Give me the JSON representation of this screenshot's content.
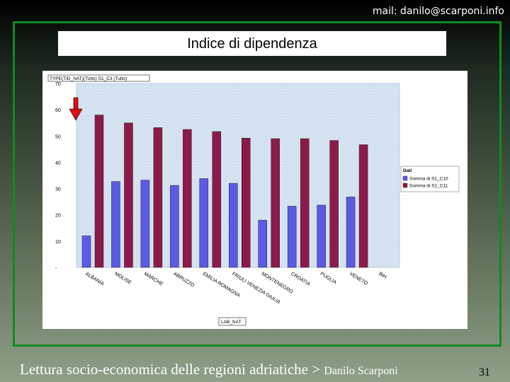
{
  "header": {
    "email": "mail: danilo@scarponi.info"
  },
  "slide": {
    "title": "Indice di dipendenza"
  },
  "footer": {
    "text": "Lettura socio-economica delle regioni adriatiche > ",
    "author": "Danilo Scarponi",
    "page_number": "31"
  },
  "colors": {
    "series1": "#5b5be6",
    "series2": "#8c1a4a",
    "plot_bg": "#d6e4f2",
    "arrow": "#e01010"
  },
  "chart_data": {
    "type": "bar",
    "filter_label": "TYPE(TID_NAT)(Tutto) S1_C3 (Tutto)",
    "categories": [
      "ALBANIA",
      "MOLISE",
      "MARCHE",
      "ABRUZZO",
      "EMILIA ROMAGNA",
      "FRIULI VENEZIA GIULIA",
      "MONTENEGRO",
      "CROATIA",
      "PUGLIA",
      "VENETO",
      "BiH"
    ],
    "series": [
      {
        "name": "Somma di S1_C10",
        "values": [
          12,
          32.7,
          33.2,
          31.2,
          33.8,
          32,
          18,
          23.3,
          23.7,
          26.8,
          null
        ]
      },
      {
        "name": "Somma di S1_C11",
        "values": [
          58,
          55,
          53.2,
          52.5,
          51.7,
          49.2,
          49,
          49,
          48.3,
          46.7,
          null
        ]
      }
    ],
    "y_ticks": [
      "-",
      "10",
      "20",
      "30",
      "40",
      "50",
      "60",
      "70"
    ],
    "ylim": [
      0,
      70
    ],
    "legend_title": "Dati",
    "legend_position": "right",
    "xlabel": "LAB_NAT",
    "grid": false
  }
}
